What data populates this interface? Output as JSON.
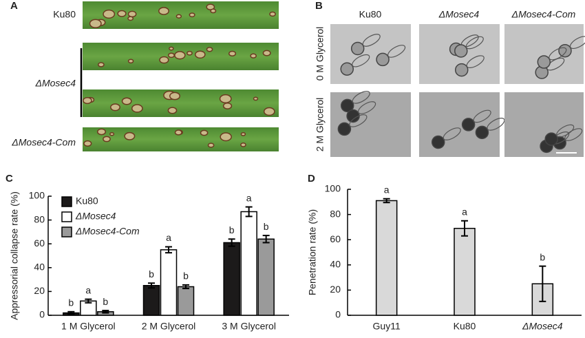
{
  "panel_a": {
    "label": "A",
    "strains": [
      "Ku80",
      "ΔMosec4",
      "ΔMosec4-Com"
    ]
  },
  "panel_b": {
    "label": "B",
    "columns": [
      "Ku80",
      "ΔMosec4",
      "ΔMosec4-Com"
    ],
    "rows": [
      "0 M Glycerol",
      "2 M Glycerol"
    ]
  },
  "chart_data": [
    {
      "type": "bar",
      "panel": "C",
      "y_label": "Appressorial collapse rate (%)",
      "categories": [
        "1 M Glycerol",
        "2 M Glycerol",
        "3 M Glycerol"
      ],
      "series": [
        {
          "name": "Ku80",
          "color": "#1c1a1a",
          "values": [
            2,
            25,
            61
          ],
          "errors": [
            1,
            2,
            3
          ],
          "significance": [
            "b",
            "b",
            "b"
          ]
        },
        {
          "name": "ΔMosec4",
          "color": "#ffffff",
          "values": [
            12,
            55,
            87
          ],
          "errors": [
            1.5,
            2.5,
            4
          ],
          "significance": [
            "a",
            "a",
            "a"
          ]
        },
        {
          "name": "ΔMosec4-Com",
          "color": "#9a9a9a",
          "values": [
            3,
            24,
            64
          ],
          "errors": [
            1,
            1.5,
            3
          ],
          "significance": [
            "b",
            "b",
            "b"
          ]
        }
      ],
      "ylim": [
        0,
        100
      ],
      "yticks": [
        0,
        20,
        40,
        60,
        80,
        100
      ],
      "legend": "upper-left"
    },
    {
      "type": "bar",
      "panel": "D",
      "y_label": "Penetration rate (%)",
      "categories": [
        "Guy11",
        "Ku80",
        "ΔMosec4"
      ],
      "values": [
        91,
        69,
        25
      ],
      "errors": [
        1.5,
        6,
        14
      ],
      "significance": [
        "a",
        "a",
        "b"
      ],
      "color": "#d9d9d9",
      "ylim": [
        0,
        100
      ],
      "yticks": [
        0,
        20,
        40,
        60,
        80,
        100
      ]
    }
  ]
}
